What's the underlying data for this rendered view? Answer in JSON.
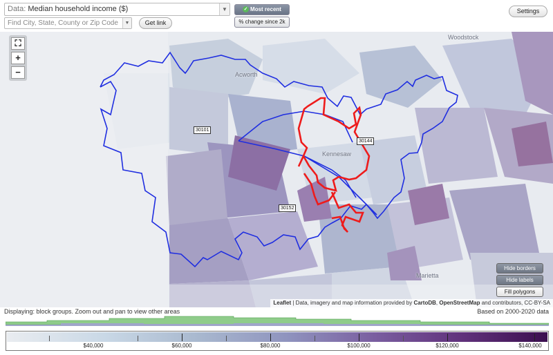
{
  "toolbar": {
    "data_prefix": "Data:",
    "data_value": "Median household income ($)",
    "find_placeholder": "Find City, State, County or Zip Code",
    "get_link": "Get link",
    "toggle_recent": "Most recent value",
    "toggle_change": "% change since 2k",
    "settings": "Settings"
  },
  "map": {
    "zoom_in": "+",
    "zoom_out": "−",
    "fullscreen": "⛶",
    "zip_labels": [
      "30101",
      "30144",
      "30152"
    ],
    "place_labels": [
      "Woodstock",
      "Acworth",
      "Kennesaw",
      "Marietta"
    ],
    "buttons": {
      "hide_borders": "Hide borders",
      "hide_labels": "Hide labels",
      "fill_polygons": "Fill polygons"
    },
    "attribution": {
      "leaflet": "Leaflet",
      "text1": " | Data, imagery and map information provided by ",
      "cartodb": "CartoDB",
      "text2": ", ",
      "osm": "OpenStreetMap",
      "text3": " and contributors, CC-BY-SA"
    },
    "colors": {
      "boundary_blue": "#1f2ee0",
      "boundary_red": "#ee1b1b"
    }
  },
  "legend": {
    "status": "Displaying: block groups. Zoom out and pan to view other areas",
    "based_on": "Based on 2000-2020 data",
    "tick_labels": [
      "$40,000",
      "$60,000",
      "$80,000",
      "$100,000",
      "$120,000",
      "$140,000"
    ],
    "histogram_color": "#7ec27e",
    "histogram_color_2": "#9fa5c9"
  }
}
